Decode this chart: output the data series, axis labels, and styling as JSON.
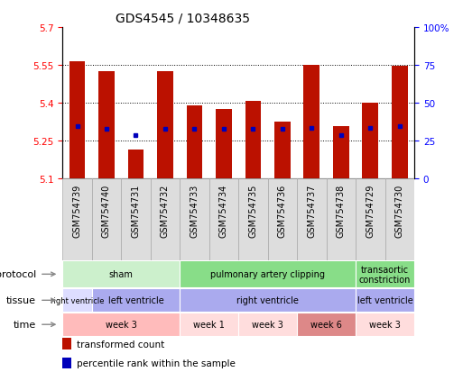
{
  "title": "GDS4545 / 10348635",
  "samples": [
    "GSM754739",
    "GSM754740",
    "GSM754731",
    "GSM754732",
    "GSM754733",
    "GSM754734",
    "GSM754735",
    "GSM754736",
    "GSM754737",
    "GSM754738",
    "GSM754729",
    "GSM754730"
  ],
  "bar_tops": [
    5.565,
    5.525,
    5.215,
    5.525,
    5.39,
    5.375,
    5.405,
    5.325,
    5.55,
    5.305,
    5.4,
    5.545
  ],
  "bar_bottoms": [
    5.1,
    5.1,
    5.1,
    5.1,
    5.1,
    5.1,
    5.1,
    5.1,
    5.1,
    5.1,
    5.1,
    5.1
  ],
  "blue_dot_y": [
    5.305,
    5.295,
    5.27,
    5.295,
    5.295,
    5.295,
    5.295,
    5.295,
    5.3,
    5.27,
    5.3,
    5.305
  ],
  "ylim": [
    5.1,
    5.7
  ],
  "yticks_left": [
    5.1,
    5.25,
    5.4,
    5.55,
    5.7
  ],
  "yticks_right": [
    0,
    25,
    50,
    75,
    100
  ],
  "bar_color": "#bb1100",
  "dot_color": "#0000bb",
  "protocol_rows": [
    {
      "label": "sham",
      "start": 0,
      "end": 4,
      "color": "#ccf0cc"
    },
    {
      "label": "pulmonary artery clipping",
      "start": 4,
      "end": 10,
      "color": "#88dd88"
    },
    {
      "label": "transaortic\nconstriction",
      "start": 10,
      "end": 12,
      "color": "#88dd88"
    }
  ],
  "tissue_rows": [
    {
      "label": "right ventricle",
      "start": 0,
      "end": 1,
      "color": "#ddddff"
    },
    {
      "label": "left ventricle",
      "start": 1,
      "end": 4,
      "color": "#aaaaee"
    },
    {
      "label": "right ventricle",
      "start": 4,
      "end": 10,
      "color": "#aaaaee"
    },
    {
      "label": "left ventricle",
      "start": 10,
      "end": 12,
      "color": "#aaaaee"
    }
  ],
  "time_rows": [
    {
      "label": "week 3",
      "start": 0,
      "end": 4,
      "color": "#ffbbbb"
    },
    {
      "label": "week 1",
      "start": 4,
      "end": 6,
      "color": "#ffdddd"
    },
    {
      "label": "week 3",
      "start": 6,
      "end": 8,
      "color": "#ffdddd"
    },
    {
      "label": "week 6",
      "start": 8,
      "end": 10,
      "color": "#dd8888"
    },
    {
      "label": "week 3",
      "start": 10,
      "end": 12,
      "color": "#ffdddd"
    }
  ],
  "legend_items": [
    {
      "label": "transformed count",
      "color": "#bb1100"
    },
    {
      "label": "percentile rank within the sample",
      "color": "#0000bb"
    }
  ],
  "row_label_names": [
    "protocol",
    "tissue",
    "time"
  ],
  "title_fontsize": 10,
  "tick_fontsize": 7.5,
  "annot_fontsize": 7,
  "label_fontsize": 8
}
